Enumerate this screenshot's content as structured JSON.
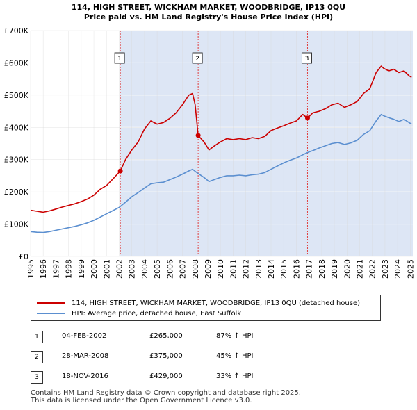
{
  "chart_data": {
    "type": "line",
    "title_line1": "114, HIGH STREET, WICKHAM MARKET, WOODBRIDGE, IP13 0QU",
    "title_line2": "Price paid vs. HM Land Registry's House Price Index (HPI)",
    "ylim": [
      0,
      700000
    ],
    "xlim": [
      1995,
      2025.2
    ],
    "y_ticks": [
      {
        "value": 0,
        "label": "£0"
      },
      {
        "value": 100000,
        "label": "£100K"
      },
      {
        "value": 200000,
        "label": "£200K"
      },
      {
        "value": 300000,
        "label": "£300K"
      },
      {
        "value": 400000,
        "label": "£400K"
      },
      {
        "value": 500000,
        "label": "£500K"
      },
      {
        "value": 600000,
        "label": "£600K"
      },
      {
        "value": 700000,
        "label": "£700K"
      }
    ],
    "x_ticks": [
      "1995",
      "1996",
      "1997",
      "1998",
      "1999",
      "2000",
      "2001",
      "2002",
      "2003",
      "2004",
      "2005",
      "2006",
      "2007",
      "2008",
      "2009",
      "2010",
      "2011",
      "2012",
      "2013",
      "2014",
      "2015",
      "2016",
      "2017",
      "2018",
      "2019",
      "2020",
      "2021",
      "2022",
      "2023",
      "2024",
      "2025"
    ],
    "series": [
      {
        "name": "114, HIGH STREET, WICKHAM MARKET, WOODBRIDGE, IP13 0QU (detached house)",
        "color": "#cc0000",
        "points": [
          [
            1995,
            143000
          ],
          [
            1995.5,
            140000
          ],
          [
            1996,
            137000
          ],
          [
            1996.5,
            141000
          ],
          [
            1997,
            147000
          ],
          [
            1997.5,
            153000
          ],
          [
            1998,
            158000
          ],
          [
            1998.5,
            163000
          ],
          [
            1999,
            170000
          ],
          [
            1999.5,
            178000
          ],
          [
            2000,
            190000
          ],
          [
            2000.5,
            208000
          ],
          [
            2001,
            220000
          ],
          [
            2001.5,
            240000
          ],
          [
            2002.09,
            265000
          ],
          [
            2002.5,
            300000
          ],
          [
            2003,
            330000
          ],
          [
            2003.5,
            355000
          ],
          [
            2004,
            395000
          ],
          [
            2004.5,
            420000
          ],
          [
            2005,
            410000
          ],
          [
            2005.5,
            415000
          ],
          [
            2006,
            428000
          ],
          [
            2006.5,
            445000
          ],
          [
            2007,
            470000
          ],
          [
            2007.5,
            500000
          ],
          [
            2007.8,
            505000
          ],
          [
            2008.0,
            470000
          ],
          [
            2008.24,
            375000
          ],
          [
            2008.7,
            355000
          ],
          [
            2009.1,
            330000
          ],
          [
            2009.5,
            342000
          ],
          [
            2010,
            355000
          ],
          [
            2010.5,
            365000
          ],
          [
            2011,
            362000
          ],
          [
            2011.5,
            365000
          ],
          [
            2012,
            362000
          ],
          [
            2012.5,
            368000
          ],
          [
            2013,
            365000
          ],
          [
            2013.5,
            372000
          ],
          [
            2014,
            390000
          ],
          [
            2014.5,
            398000
          ],
          [
            2015,
            405000
          ],
          [
            2015.5,
            413000
          ],
          [
            2016,
            420000
          ],
          [
            2016.5,
            440000
          ],
          [
            2016.88,
            429000
          ],
          [
            2017.3,
            445000
          ],
          [
            2017.8,
            450000
          ],
          [
            2018.3,
            458000
          ],
          [
            2018.8,
            470000
          ],
          [
            2019.3,
            475000
          ],
          [
            2019.8,
            462000
          ],
          [
            2020.3,
            470000
          ],
          [
            2020.8,
            480000
          ],
          [
            2021.3,
            505000
          ],
          [
            2021.8,
            520000
          ],
          [
            2022.3,
            570000
          ],
          [
            2022.7,
            590000
          ],
          [
            2022.9,
            583000
          ],
          [
            2023.3,
            575000
          ],
          [
            2023.7,
            580000
          ],
          [
            2024.1,
            570000
          ],
          [
            2024.5,
            575000
          ],
          [
            2024.9,
            560000
          ],
          [
            2025.1,
            555000
          ]
        ]
      },
      {
        "name": "HPI: Average price, detached house, East Suffolk",
        "color": "#5b8fd0",
        "points": [
          [
            1995,
            77000
          ],
          [
            1995.5,
            75000
          ],
          [
            1996,
            74000
          ],
          [
            1996.5,
            77000
          ],
          [
            1997,
            81000
          ],
          [
            1997.5,
            85000
          ],
          [
            1998,
            89000
          ],
          [
            1998.5,
            93000
          ],
          [
            1999,
            98000
          ],
          [
            1999.5,
            104000
          ],
          [
            2000,
            112000
          ],
          [
            2000.5,
            122000
          ],
          [
            2001,
            132000
          ],
          [
            2001.5,
            142000
          ],
          [
            2002,
            152000
          ],
          [
            2002.5,
            168000
          ],
          [
            2003,
            185000
          ],
          [
            2003.5,
            198000
          ],
          [
            2004,
            212000
          ],
          [
            2004.5,
            225000
          ],
          [
            2005,
            228000
          ],
          [
            2005.5,
            230000
          ],
          [
            2006,
            238000
          ],
          [
            2006.5,
            246000
          ],
          [
            2007,
            255000
          ],
          [
            2007.5,
            265000
          ],
          [
            2007.8,
            270000
          ],
          [
            2008.2,
            258000
          ],
          [
            2008.7,
            245000
          ],
          [
            2009.1,
            232000
          ],
          [
            2009.5,
            238000
          ],
          [
            2010,
            245000
          ],
          [
            2010.5,
            250000
          ],
          [
            2011,
            250000
          ],
          [
            2011.5,
            252000
          ],
          [
            2012,
            250000
          ],
          [
            2012.5,
            253000
          ],
          [
            2013,
            255000
          ],
          [
            2013.5,
            260000
          ],
          [
            2014,
            270000
          ],
          [
            2014.5,
            280000
          ],
          [
            2015,
            290000
          ],
          [
            2015.5,
            298000
          ],
          [
            2016,
            305000
          ],
          [
            2016.5,
            315000
          ],
          [
            2016.88,
            322000
          ],
          [
            2017.3,
            328000
          ],
          [
            2017.8,
            336000
          ],
          [
            2018.3,
            343000
          ],
          [
            2018.8,
            350000
          ],
          [
            2019.3,
            353000
          ],
          [
            2019.8,
            347000
          ],
          [
            2020.3,
            352000
          ],
          [
            2020.8,
            360000
          ],
          [
            2021.3,
            378000
          ],
          [
            2021.8,
            390000
          ],
          [
            2022.3,
            420000
          ],
          [
            2022.7,
            440000
          ],
          [
            2022.9,
            436000
          ],
          [
            2023.3,
            430000
          ],
          [
            2023.7,
            425000
          ],
          [
            2024.1,
            418000
          ],
          [
            2024.5,
            425000
          ],
          [
            2024.9,
            415000
          ],
          [
            2025.1,
            410000
          ]
        ]
      }
    ],
    "sale_markers": [
      {
        "label": "1",
        "x": 2002.09,
        "y": 265000
      },
      {
        "label": "2",
        "x": 2008.24,
        "y": 375000
      },
      {
        "label": "3",
        "x": 2016.88,
        "y": 429000
      }
    ],
    "shade_color": "#dde6f5",
    "grid": true
  },
  "legend": {
    "red_label": "114, HIGH STREET, WICKHAM MARKET, WOODBRIDGE, IP13 0QU (detached house)",
    "blue_label": "HPI: Average price, detached house, East Suffolk"
  },
  "sales": [
    {
      "num": "1",
      "date": "04-FEB-2002",
      "price": "£265,000",
      "pct": "87% ↑ HPI"
    },
    {
      "num": "2",
      "date": "28-MAR-2008",
      "price": "£375,000",
      "pct": "45% ↑ HPI"
    },
    {
      "num": "3",
      "date": "18-NOV-2016",
      "price": "£429,000",
      "pct": "33% ↑ HPI"
    }
  ],
  "footer": {
    "line1": "Contains HM Land Registry data © Crown copyright and database right 2025.",
    "line2": "This data is licensed under the Open Government Licence v3.0."
  }
}
